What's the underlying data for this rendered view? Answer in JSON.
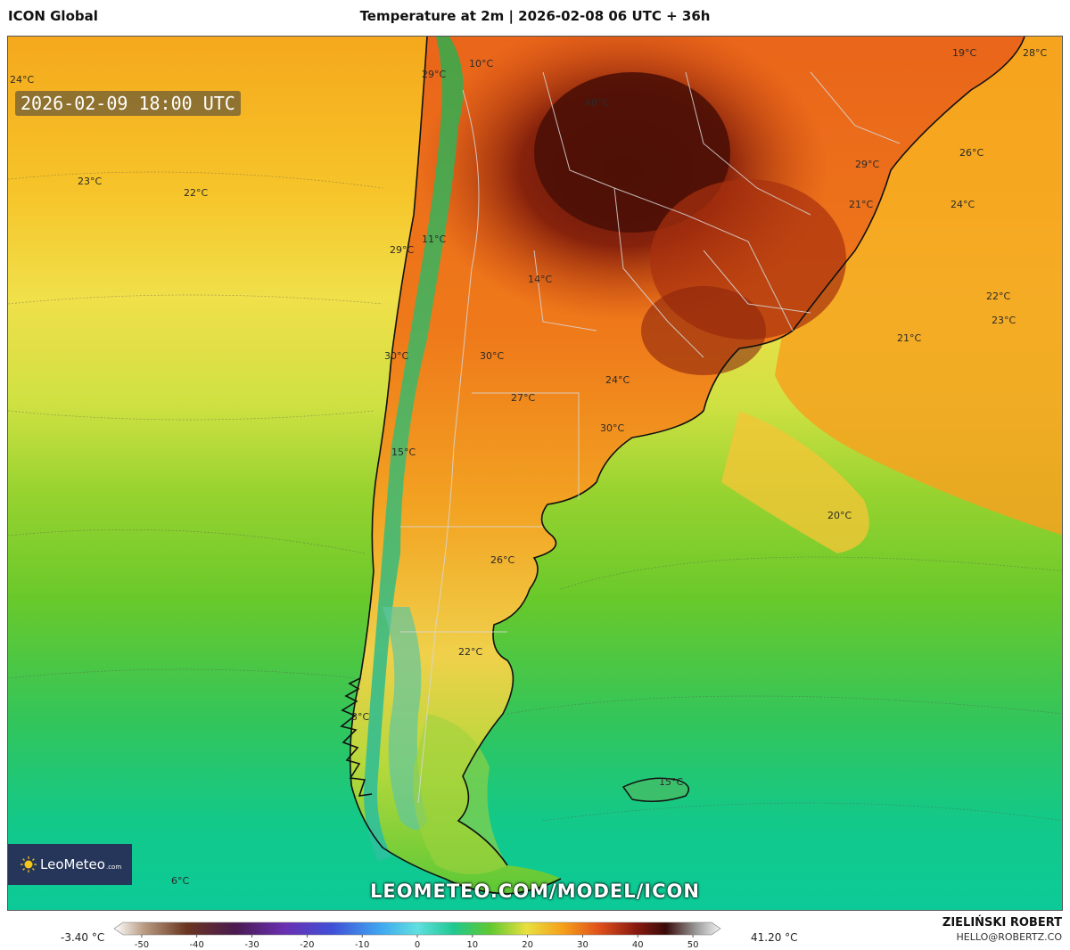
{
  "header": {
    "model": "ICON Global",
    "title": "Temperature at 2m | 2026-02-08 06 UTC + 36h"
  },
  "map": {
    "timestamp": "2026-02-09 18:00 UTC",
    "watermark": "LEOMETEO.COM/MODEL/ICON",
    "logo": {
      "name": "LeoMeteo",
      "suffix": ".com"
    },
    "labels": [
      {
        "text": "24°C"
      },
      {
        "text": "29°C"
      },
      {
        "text": "10°C"
      },
      {
        "text": "40°C"
      },
      {
        "text": "19°C"
      },
      {
        "text": "28°C"
      },
      {
        "text": "23°C"
      },
      {
        "text": "22°C"
      },
      {
        "text": "29°C"
      },
      {
        "text": "26°C"
      },
      {
        "text": "21°C"
      },
      {
        "text": "24°C"
      },
      {
        "text": "29°C"
      },
      {
        "text": "11°C"
      },
      {
        "text": "14°C"
      },
      {
        "text": "22°C"
      },
      {
        "text": "23°C"
      },
      {
        "text": "21°C"
      },
      {
        "text": "30°C"
      },
      {
        "text": "30°C"
      },
      {
        "text": "24°C"
      },
      {
        "text": "27°C"
      },
      {
        "text": "30°C"
      },
      {
        "text": "15°C"
      },
      {
        "text": "20°C"
      },
      {
        "text": "26°C"
      },
      {
        "text": "22°C"
      },
      {
        "text": "3°C"
      },
      {
        "text": "15°C"
      },
      {
        "text": "6°C"
      }
    ]
  },
  "colorbar": {
    "min_label": "-3.40 °C",
    "max_label": "41.20 °C",
    "ticks": [
      "-50",
      "-40",
      "-30",
      "-20",
      "-10",
      "0",
      "10",
      "20",
      "30",
      "40",
      "50"
    ],
    "range": [
      -55,
      55
    ]
  },
  "author": {
    "name": "ZIELIŃSKI ROBERT",
    "email": "HELLO@ROBERTZ.CO"
  }
}
